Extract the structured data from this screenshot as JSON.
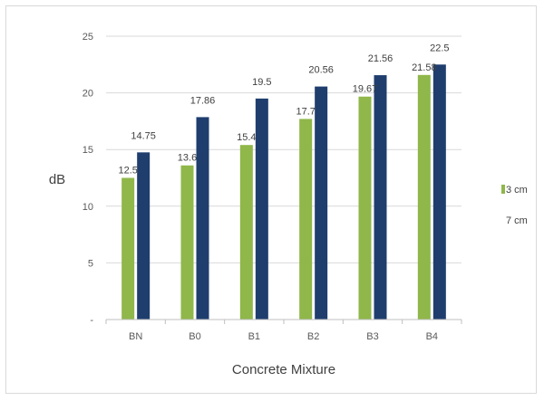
{
  "chart_data": {
    "type": "bar",
    "title": "",
    "xlabel": "Concrete Mixture",
    "ylabel": "dB",
    "categories": [
      "BN",
      "B0",
      "B1",
      "B2",
      "B3",
      "B4"
    ],
    "series": [
      {
        "name": "3 cm",
        "color": "#8fb74a",
        "values": [
          12.5,
          13.6,
          15.4,
          17.7,
          19.67,
          21.58
        ],
        "labels": [
          "12.5",
          "13.6",
          "15.4",
          "17.7",
          "19.67",
          "21.58"
        ]
      },
      {
        "name": "7 cm",
        "color": "#1f3e6e",
        "values": [
          14.75,
          17.86,
          19.5,
          20.56,
          21.56,
          22.5
        ],
        "labels": [
          "14.75",
          "17.86",
          "19.5",
          "20.56",
          "21.56",
          "22.5"
        ]
      }
    ],
    "ylim": [
      0,
      25
    ],
    "yticks": [
      {
        "value": 0,
        "label": "-"
      },
      {
        "value": 5,
        "label": "5"
      },
      {
        "value": 10,
        "label": "10"
      },
      {
        "value": 15,
        "label": "15"
      },
      {
        "value": 20,
        "label": "20"
      },
      {
        "value": 25,
        "label": "25"
      }
    ],
    "grid": true,
    "legend_position": "right"
  }
}
